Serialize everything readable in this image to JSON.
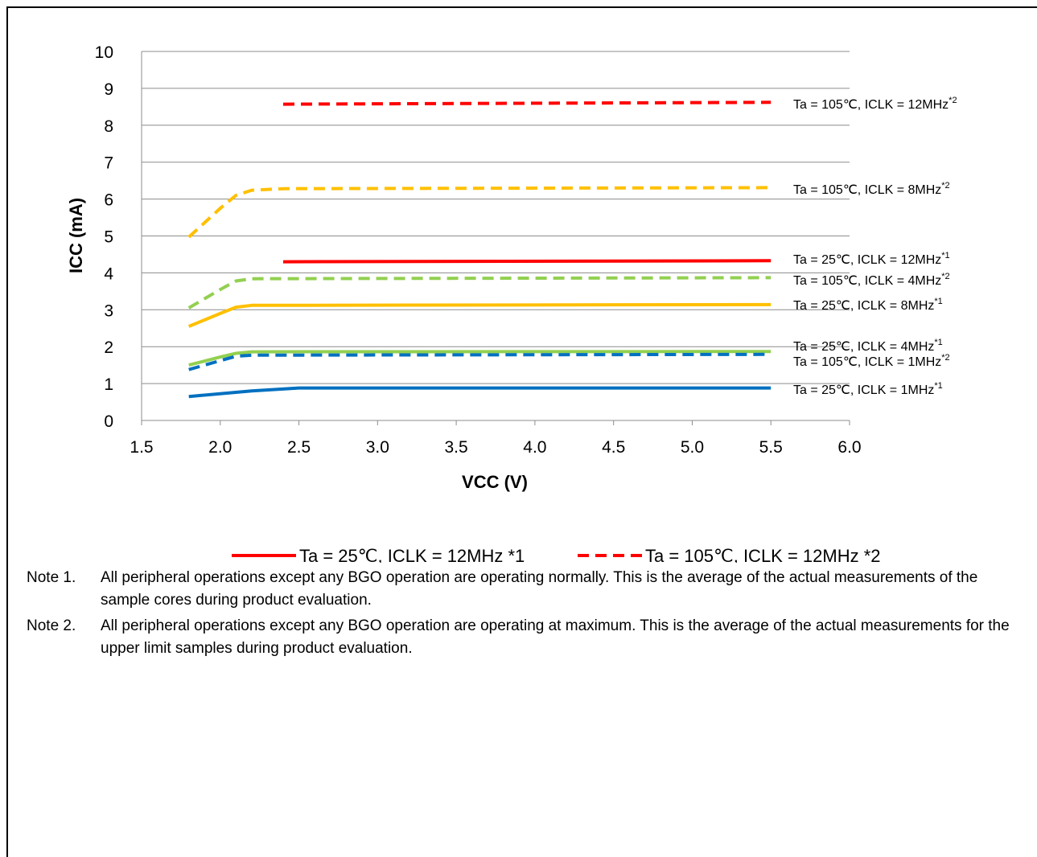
{
  "chart_data": {
    "type": "line",
    "xlabel": "VCC (V)",
    "ylabel": "ICC (mA)",
    "xlim": [
      1.5,
      6.0
    ],
    "ylim": [
      0,
      10
    ],
    "x_ticks": [
      "1.5",
      "2.0",
      "2.5",
      "3.0",
      "3.5",
      "4.0",
      "4.5",
      "5.0",
      "5.5",
      "6.0"
    ],
    "y_ticks": [
      "0",
      "1",
      "2",
      "3",
      "4",
      "5",
      "6",
      "7",
      "8",
      "9",
      "10"
    ],
    "grid": "horizontal",
    "legend_position": "bottom",
    "series": [
      {
        "name": "Ta = 25℃, ICLK = 12MHz *1",
        "label": "Ta = 25℃, ICLK = 12MHz",
        "sup": "*1",
        "color": "#ff0000",
        "dash": false,
        "points": [
          [
            2.4,
            4.3
          ],
          [
            5.5,
            4.33
          ]
        ]
      },
      {
        "name": "Ta = 105℃, ICLK = 12MHz *2",
        "label": "Ta = 105℃, ICLK = 12MHz",
        "sup": "*2",
        "color": "#ff0000",
        "dash": true,
        "points": [
          [
            2.4,
            8.57
          ],
          [
            5.5,
            8.62
          ]
        ]
      },
      {
        "name": "Ta = 25℃, ICLK = 8MHz *1",
        "label": "Ta = 25℃, ICLK = 8MHz",
        "sup": "*1",
        "color": "#ffc000",
        "dash": false,
        "points": [
          [
            1.8,
            2.55
          ],
          [
            2.0,
            2.9
          ],
          [
            2.1,
            3.07
          ],
          [
            2.2,
            3.12
          ],
          [
            5.5,
            3.14
          ]
        ]
      },
      {
        "name": "Ta = 105℃, ICLK = 8MHz *2",
        "label": "Ta = 105℃, ICLK = 8MHz",
        "sup": "*2",
        "color": "#ffc000",
        "dash": true,
        "points": [
          [
            1.8,
            4.97
          ],
          [
            2.0,
            5.75
          ],
          [
            2.1,
            6.1
          ],
          [
            2.2,
            6.24
          ],
          [
            2.4,
            6.28
          ],
          [
            5.5,
            6.31
          ]
        ]
      },
      {
        "name": "Ta = 25℃, ICLK = 4MHz *1",
        "label": "Ta = 25℃, ICLK = 4MHz",
        "sup": "*1",
        "color": "#92d050",
        "dash": false,
        "points": [
          [
            1.8,
            1.5
          ],
          [
            2.0,
            1.72
          ],
          [
            2.1,
            1.82
          ],
          [
            2.2,
            1.86
          ],
          [
            5.5,
            1.87
          ]
        ]
      },
      {
        "name": "Ta = 105℃, ICLK = 4MHz *2",
        "label": "Ta = 105℃, ICLK = 4MHz",
        "sup": "*2",
        "color": "#92d050",
        "dash": true,
        "points": [
          [
            1.8,
            3.05
          ],
          [
            2.0,
            3.55
          ],
          [
            2.1,
            3.78
          ],
          [
            2.2,
            3.84
          ],
          [
            5.5,
            3.87
          ]
        ]
      },
      {
        "name": "Ta = 25℃, ICLK = 1MHz *1",
        "label": "Ta = 25℃, ICLK = 1MHz",
        "sup": "*1",
        "color": "#0070c0",
        "dash": false,
        "points": [
          [
            1.8,
            0.65
          ],
          [
            2.2,
            0.8
          ],
          [
            2.5,
            0.88
          ],
          [
            5.5,
            0.88
          ]
        ]
      },
      {
        "name": "Ta = 105℃, ICLK = 1MHz *2",
        "label": "Ta = 105℃, ICLK = 1MHz",
        "sup": "*2",
        "color": "#0070c0",
        "dash": true,
        "points": [
          [
            1.8,
            1.38
          ],
          [
            2.0,
            1.62
          ],
          [
            2.1,
            1.74
          ],
          [
            2.2,
            1.77
          ],
          [
            5.5,
            1.79
          ]
        ]
      }
    ],
    "line_labels": [
      {
        "series": 1,
        "text": "Ta = 105℃, ICLK = 12MHz",
        "sup": "*2"
      },
      {
        "series": 3,
        "text": "Ta = 105℃, ICLK = 8MHz",
        "sup": "*2"
      },
      {
        "series": 0,
        "text": "Ta = 25℃, ICLK = 12MHz",
        "sup": "*1"
      },
      {
        "series": 5,
        "text": "Ta = 105℃, ICLK = 4MHz",
        "sup": "*2"
      },
      {
        "series": 2,
        "text": "Ta = 25℃, ICLK = 8MHz",
        "sup": "*1"
      },
      {
        "series": 4,
        "text": "Ta = 25℃, ICLK = 4MHz",
        "sup": "*1"
      },
      {
        "series": 7,
        "text": "Ta = 105℃, ICLK = 1MHz",
        "sup": "*2"
      },
      {
        "series": 6,
        "text": "Ta = 25℃, ICLK = 1MHz",
        "sup": "*1"
      }
    ]
  },
  "notes": [
    {
      "label": "Note 1.",
      "text": "All peripheral operations except any BGO operation are operating normally. This is the average of the actual measurements of the sample cores during product evaluation."
    },
    {
      "label": "Note 2.",
      "text": "All peripheral operations except any BGO operation are operating at maximum. This is the average of the actual measurements for the upper limit samples during product evaluation."
    }
  ]
}
